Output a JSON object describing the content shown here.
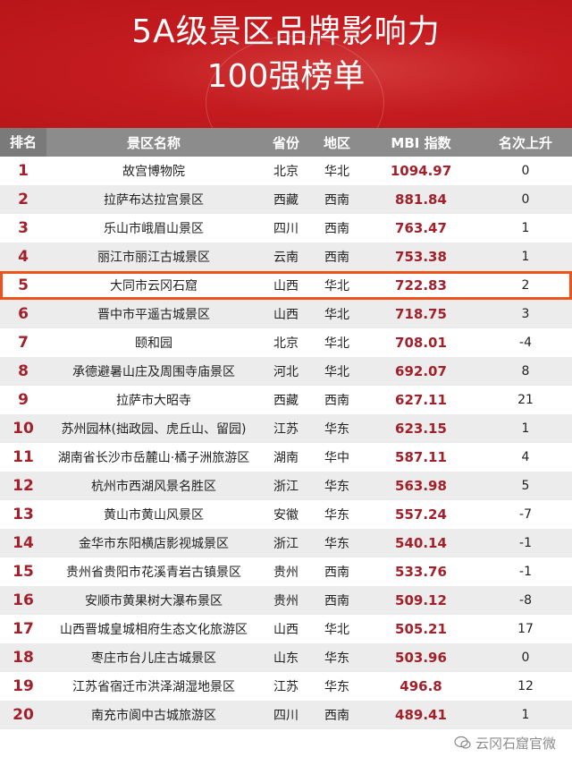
{
  "title": {
    "line1": "5A级景区品牌影响力",
    "line2": "100强榜单"
  },
  "columns": [
    "排名",
    "景区名称",
    "省份",
    "地区",
    "MBI 指数",
    "名次上升"
  ],
  "highlighted_rank": 5,
  "colors": {
    "banner": "#c41b1f",
    "highlight": "#f0521c",
    "rank_text": "#a3202a"
  },
  "rows": [
    [
      "1",
      "故宫博物院",
      "北京",
      "华北",
      "1094.97",
      "0"
    ],
    [
      "2",
      "拉萨布达拉宫景区",
      "西藏",
      "西南",
      "881.84",
      "0"
    ],
    [
      "3",
      "乐山市峨眉山景区",
      "四川",
      "西南",
      "763.47",
      "1"
    ],
    [
      "4",
      "丽江市丽江古城景区",
      "云南",
      "西南",
      "753.38",
      "1"
    ],
    [
      "5",
      "大同市云冈石窟",
      "山西",
      "华北",
      "722.83",
      "2"
    ],
    [
      "6",
      "晋中市平遥古城景区",
      "山西",
      "华北",
      "718.75",
      "3"
    ],
    [
      "7",
      "颐和园",
      "北京",
      "华北",
      "708.01",
      "-4"
    ],
    [
      "8",
      "承德避暑山庄及周围寺庙景区",
      "河北",
      "华北",
      "692.07",
      "8"
    ],
    [
      "9",
      "拉萨市大昭寺",
      "西藏",
      "西南",
      "627.11",
      "21"
    ],
    [
      "10",
      "苏州园林(拙政园、虎丘山、留园)",
      "江苏",
      "华东",
      "623.15",
      "1"
    ],
    [
      "11",
      "湖南省长沙市岳麓山·橘子洲旅游区",
      "湖南",
      "华中",
      "587.11",
      "4"
    ],
    [
      "12",
      "杭州市西湖风景名胜区",
      "浙江",
      "华东",
      "563.98",
      "5"
    ],
    [
      "13",
      "黄山市黄山风景区",
      "安徽",
      "华东",
      "557.24",
      "-7"
    ],
    [
      "14",
      "金华市东阳横店影视城景区",
      "浙江",
      "华东",
      "540.14",
      "-1"
    ],
    [
      "15",
      "贵州省贵阳市花溪青岩古镇景区",
      "贵州",
      "西南",
      "533.76",
      "-1"
    ],
    [
      "16",
      "安顺市黄果树大瀑布景区",
      "贵州",
      "西南",
      "509.12",
      "-8"
    ],
    [
      "17",
      "山西晋城皇城相府生态文化旅游区",
      "山西",
      "华北",
      "505.21",
      "17"
    ],
    [
      "18",
      "枣庄市台儿庄古城景区",
      "山东",
      "华东",
      "503.96",
      "0"
    ],
    [
      "19",
      "江苏省宿迁市洪泽湖湿地景区",
      "江苏",
      "华东",
      "496.8",
      "12"
    ],
    [
      "20",
      "南充市阆中古城旅游区",
      "四川",
      "西南",
      "489.41",
      "1"
    ]
  ],
  "watermark": {
    "icon": "wechat-icon",
    "text": "云冈石窟官微"
  }
}
